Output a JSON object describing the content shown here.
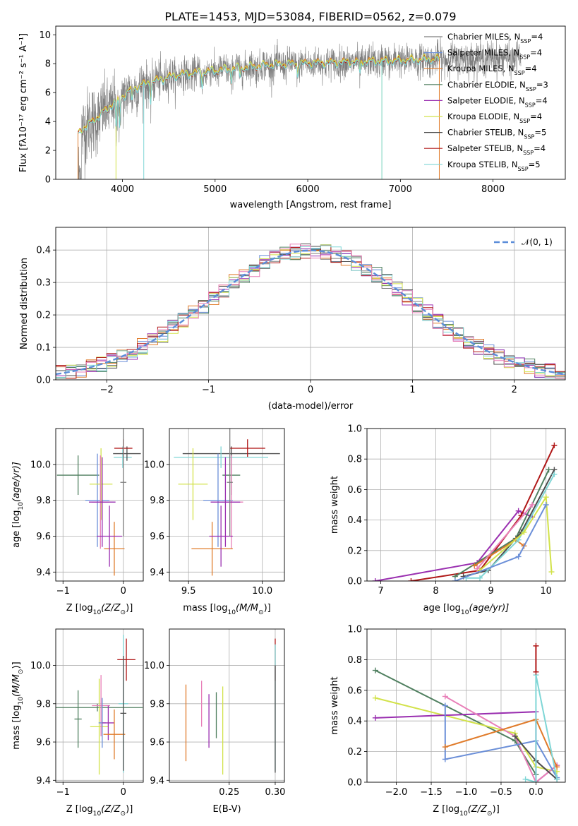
{
  "figure": {
    "title": "PLATE=1453, MJD=53084, FIBERID=0562, z=0.079"
  },
  "colors": {
    "Chabrier MILES": "#7f7f7f",
    "Salpeter MILES": "#6b8fd8",
    "Kroupa MILES": "#e07b2a",
    "Chabrier ELODIE": "#4f7f5f",
    "Salpeter ELODIE": "#9a2fb0",
    "Kroupa ELODIE": "#d2e24a",
    "Chabrier STELIB": "#4d4d4d",
    "Salpeter STELIB": "#b01818",
    "Kroupa STELIB": "#7fd6d6",
    "pink": "#e87fb8",
    "normal": "#5b8dd9"
  },
  "chart_data": [
    {
      "id": "spectrum",
      "type": "line",
      "title": "PLATE=1453, MJD=53084, FIBERID=0562, z=0.079",
      "xlabel": "wavelength [Angstrom, rest frame]",
      "ylabel": "Flux [fλ10⁻¹⁷ erg cm⁻² s⁻¹ A⁻¹]",
      "xlim": [
        3280,
        8780
      ],
      "ylim": [
        0,
        10.6
      ],
      "xticks": [
        4000,
        5000,
        6000,
        7000,
        8000
      ],
      "yticks": [
        0,
        2,
        4,
        6,
        8,
        10
      ],
      "legend_position": "right",
      "data_range": [
        3520,
        8300
      ],
      "model_range": [
        3520,
        7420
      ],
      "legend": [
        {
          "name": "Chabrier MILES",
          "label": "Chabrier MILES, N",
          "sub": "SSP",
          "suffix": "=4"
        },
        {
          "name": "Salpeter MILES",
          "label": "Salpeter MILES, N",
          "sub": "SSP",
          "suffix": "=4"
        },
        {
          "name": "Kroupa MILES",
          "label": "Kroupa MILES, N",
          "sub": "SSP",
          "suffix": "=4"
        },
        {
          "name": "Chabrier ELODIE",
          "label": "Chabrier ELODIE, N",
          "sub": "SSP",
          "suffix": "=3"
        },
        {
          "name": "Salpeter ELODIE",
          "label": "Salpeter ELODIE, N",
          "sub": "SSP",
          "suffix": "=4"
        },
        {
          "name": "Kroupa ELODIE",
          "label": "Kroupa ELODIE, N",
          "sub": "SSP",
          "suffix": "=4"
        },
        {
          "name": "Chabrier STELIB",
          "label": "Chabrier STELIB, N",
          "sub": "SSP",
          "suffix": "=5"
        },
        {
          "name": "Salpeter STELIB",
          "label": "Salpeter STELIB, N",
          "sub": "SSP",
          "suffix": "=4"
        },
        {
          "name": "Kroupa STELIB",
          "label": "Kroupa STELIB, N",
          "sub": "SSP",
          "suffix": "=5"
        }
      ],
      "continuum": [
        [
          3520,
          3.2
        ],
        [
          3700,
          4.1
        ],
        [
          3900,
          5.2
        ],
        [
          4100,
          6.2
        ],
        [
          4300,
          6.7
        ],
        [
          4600,
          7.2
        ],
        [
          5000,
          7.5
        ],
        [
          5300,
          7.7
        ],
        [
          5600,
          7.9
        ],
        [
          6000,
          8.0
        ],
        [
          6500,
          8.1
        ],
        [
          7000,
          8.2
        ],
        [
          7400,
          8.3
        ],
        [
          8000,
          8.4
        ],
        [
          8300,
          8.4
        ]
      ],
      "features": [
        [
          3933,
          2.0
        ],
        [
          3968,
          2.0
        ],
        [
          4102,
          0.8
        ],
        [
          4304,
          1.2
        ],
        [
          4861,
          0.9
        ],
        [
          5175,
          0.8
        ],
        [
          5270,
          0.5
        ],
        [
          5890,
          0.7
        ],
        [
          6563,
          0.9
        ]
      ]
    },
    {
      "id": "residuals",
      "type": "line",
      "xlabel": "(data-model)/error",
      "ylabel": "Normed distribution",
      "xlim": [
        -2.5,
        2.5
      ],
      "ylim": [
        0,
        0.47
      ],
      "xticks": [
        -2,
        -1,
        0,
        1,
        2
      ],
      "yticks": [
        0.0,
        0.1,
        0.2,
        0.3,
        0.4
      ],
      "grid": true,
      "legend": [
        {
          "name": "𝒩(0, 1)",
          "style": "dashed"
        }
      ],
      "legend_position": "top-right",
      "bin_width": 0.1
    },
    {
      "id": "age-vs-Z",
      "type": "scatter",
      "xlabel_main": "Z [log",
      "xlabel_sub": "10",
      "xlabel_rest": "(Z/Z",
      "xlabel_end": ")]",
      "ylabel_main": "age  [log",
      "ylabel_sub": "10",
      "ylabel_rest": "(age/yr)]",
      "xlim": [
        -1.12,
        0.33
      ],
      "ylim": [
        9.35,
        10.2
      ],
      "xticks": [
        -1,
        0
      ],
      "yticks": [
        9.4,
        9.6,
        9.8,
        10.0
      ],
      "grid": true,
      "points": [
        {
          "s": "Chabrier ELODIE",
          "x": -0.75,
          "y": 9.94,
          "xerr": 0.35,
          "yerr": 0.11
        },
        {
          "s": "Salpeter MILES",
          "x": -0.43,
          "y": 9.8,
          "xerr": 0.2,
          "yerr": 0.26
        },
        {
          "s": "Kroupa ELODIE",
          "x": -0.37,
          "y": 9.89,
          "xerr": 0.19,
          "yerr": 0.2
        },
        {
          "s": "pink",
          "x": -0.38,
          "y": 9.79,
          "xerr": 0.14,
          "yerr": 0.26
        },
        {
          "s": "Salpeter ELODIE",
          "x": -0.35,
          "y": 9.79,
          "xerr": 0.22,
          "yerr": 0.25
        },
        {
          "s": "Kroupa MILES",
          "x": -0.15,
          "y": 9.53,
          "xerr": 0.17,
          "yerr": 0.15
        },
        {
          "s": "Salpeter ELODIE",
          "x": -0.23,
          "y": 9.6,
          "xerr": 0.21,
          "yerr": 0.17
        },
        {
          "s": "Kroupa STELIB",
          "x": -0.01,
          "y": 10.04,
          "xerr": 0.15,
          "yerr": 0.06
        },
        {
          "s": "Chabrier STELIB",
          "x": 0.06,
          "y": 10.06,
          "xerr": 0.23,
          "yerr": 0.04
        },
        {
          "s": "Salpeter STELIB",
          "x": 0.0,
          "y": 10.09,
          "xerr": 0.15,
          "yerr": 0.05
        },
        {
          "s": "Chabrier MILES",
          "x": 0.0,
          "y": 9.9,
          "xerr": 0.05,
          "yerr": 0.3
        }
      ]
    },
    {
      "id": "age-vs-mass",
      "type": "scatter",
      "xlabel_main": "mass [log",
      "xlabel_sub": "10",
      "xlabel_rest": "(M/M",
      "xlabel_end": ")]",
      "xlim": [
        9.37,
        10.15
      ],
      "ylim": [
        9.35,
        10.2
      ],
      "xticks": [
        9.5,
        10.0
      ],
      "yticks": [
        9.4,
        9.6,
        9.8,
        10.0
      ],
      "grid": true,
      "points": [
        {
          "s": "Chabrier STELIB",
          "x": 9.79,
          "y": 10.06,
          "xerr": 0.33,
          "yerr": 0.04
        },
        {
          "s": "Salpeter STELIB",
          "x": 9.9,
          "y": 10.09,
          "xerr": 0.12,
          "yerr": 0.05
        },
        {
          "s": "Kroupa STELIB",
          "x": 9.72,
          "y": 10.04,
          "xerr": 0.32,
          "yerr": 0.06
        },
        {
          "s": "Chabrier ELODIE",
          "x": 9.79,
          "y": 9.94,
          "xerr": 0.06,
          "yerr": 0.11
        },
        {
          "s": "Kroupa ELODIE",
          "x": 9.53,
          "y": 9.89,
          "xerr": 0.1,
          "yerr": 0.2
        },
        {
          "s": "Salpeter MILES",
          "x": 9.7,
          "y": 9.8,
          "xerr": 0.1,
          "yerr": 0.26
        },
        {
          "s": "pink",
          "x": 9.79,
          "y": 9.79,
          "xerr": 0.08,
          "yerr": 0.26
        },
        {
          "s": "Salpeter ELODIE",
          "x": 9.75,
          "y": 9.79,
          "xerr": 0.1,
          "yerr": 0.25
        },
        {
          "s": "Kroupa MILES",
          "x": 9.66,
          "y": 9.53,
          "xerr": 0.14,
          "yerr": 0.15
        },
        {
          "s": "Salpeter ELODIE",
          "x": 9.72,
          "y": 9.6,
          "xerr": 0.08,
          "yerr": 0.17
        },
        {
          "s": "Chabrier MILES",
          "x": 9.78,
          "y": 9.9,
          "xerr": 0.02,
          "yerr": 0.3
        }
      ]
    },
    {
      "id": "weight-vs-age",
      "type": "line",
      "xlabel_main": "age  [log",
      "xlabel_sub": "10",
      "xlabel_rest": "(age/yr)]",
      "ylabel": "mass weight",
      "xlim": [
        6.75,
        10.35
      ],
      "ylim": [
        0,
        1.0
      ],
      "xticks": [
        7,
        8,
        9,
        10
      ],
      "yticks": [
        0.0,
        0.2,
        0.4,
        0.6,
        0.8,
        1.0
      ],
      "grid": true,
      "series": [
        {
          "s": "Salpeter ELODIE",
          "pts": [
            [
              6.9,
              0.0
            ],
            [
              8.75,
              0.12
            ],
            [
              9.5,
              0.46
            ],
            [
              9.75,
              0.42
            ]
          ]
        },
        {
          "s": "Salpeter STELIB",
          "pts": [
            [
              7.55,
              0.0
            ],
            [
              8.8,
              0.07
            ],
            [
              9.55,
              0.43
            ],
            [
              10.15,
              0.89
            ]
          ]
        },
        {
          "s": "Chabrier ELODIE",
          "pts": [
            [
              8.35,
              0.03
            ],
            [
              9.45,
              0.28
            ],
            [
              10.05,
              0.73
            ]
          ]
        },
        {
          "s": "Chabrier STELIB",
          "pts": [
            [
              8.5,
              0.03
            ],
            [
              8.95,
              0.07
            ],
            [
              9.55,
              0.32
            ],
            [
              10.15,
              0.73
            ]
          ]
        },
        {
          "s": "Kroupa MILES",
          "pts": [
            [
              8.7,
              0.1
            ],
            [
              9.45,
              0.27
            ],
            [
              9.6,
              0.23
            ]
          ]
        },
        {
          "s": "pink",
          "pts": [
            [
              8.75,
              0.08
            ],
            [
              9.75,
              0.5
            ]
          ]
        },
        {
          "s": "Kroupa STELIB",
          "pts": [
            [
              8.55,
              0.02
            ],
            [
              8.8,
              0.02
            ],
            [
              9.5,
              0.27
            ],
            [
              10.15,
              0.7
            ]
          ]
        },
        {
          "s": "Kroupa ELODIE",
          "pts": [
            [
              8.8,
              0.07
            ],
            [
              9.6,
              0.32
            ],
            [
              10.0,
              0.55
            ],
            [
              10.1,
              0.06
            ]
          ]
        },
        {
          "s": "Salpeter MILES",
          "pts": [
            [
              8.35,
              0.0
            ],
            [
              9.5,
              0.16
            ],
            [
              10.0,
              0.5
            ]
          ]
        }
      ]
    },
    {
      "id": "mass-vs-Z",
      "type": "scatter",
      "xlabel_main": "Z [log",
      "xlabel_sub": "10",
      "xlabel_rest": "(Z/Z",
      "xlabel_end": ")]",
      "ylabel_main": "mass [log",
      "ylabel_sub": "10",
      "ylabel_rest": "(M/M",
      "ylabel_end": ")]",
      "xlim": [
        -1.12,
        0.33
      ],
      "ylim": [
        9.39,
        10.19
      ],
      "xticks": [
        -1,
        0
      ],
      "yticks": [
        9.4,
        9.6,
        9.8,
        10.0
      ],
      "grid": true,
      "points": [
        {
          "s": "Chabrier ELODIE",
          "x": -0.75,
          "y": 9.72,
          "xerr": 0.06,
          "yerr": 0.15
        },
        {
          "s": "Chabrier ELODIE",
          "x": -0.43,
          "y": 9.78,
          "xerr": 0.75,
          "yerr": 0.02
        },
        {
          "s": "Kroupa ELODIE",
          "x": -0.4,
          "y": 9.68,
          "xerr": 0.15,
          "yerr": 0.25
        },
        {
          "s": "pink",
          "x": -0.37,
          "y": 9.79,
          "xerr": 0.15,
          "yerr": 0.16
        },
        {
          "s": "Salpeter MILES",
          "x": -0.35,
          "y": 9.7,
          "xerr": 0.06,
          "yerr": 0.13
        },
        {
          "s": "Salpeter ELODIE",
          "x": -0.25,
          "y": 9.7,
          "xerr": 0.1,
          "yerr": 0.09
        },
        {
          "s": "Kroupa MILES",
          "x": -0.15,
          "y": 9.64,
          "xerr": 0.18,
          "yerr": 0.13
        },
        {
          "s": "Salpeter STELIB",
          "x": 0.05,
          "y": 10.03,
          "xerr": 0.15,
          "yerr": 0.11
        },
        {
          "s": "Kroupa STELIB",
          "x": 0.0,
          "y": 9.8,
          "xerr": 0.08,
          "yerr": 0.36
        },
        {
          "s": "Chabrier STELIB",
          "x": 0.0,
          "y": 9.75,
          "xerr": 0.05,
          "yerr": 0.3
        }
      ]
    },
    {
      "id": "mass-vs-ebv",
      "type": "scatter",
      "xlabel": "E(B-V)",
      "xlim": [
        0.185,
        0.31
      ],
      "ylim": [
        9.39,
        10.19
      ],
      "xticks": [
        0.25,
        0.3
      ],
      "xtick_labels": [
        "0.25",
        "0.30"
      ],
      "yticks": [
        9.4,
        9.6,
        9.8,
        10.0
      ],
      "grid": true,
      "points": [
        {
          "s": "Kroupa MILES",
          "x": 0.203,
          "y": 9.7,
          "yerr": 0.2
        },
        {
          "s": "pink",
          "x": 0.22,
          "y": 9.8,
          "yerr": 0.12
        },
        {
          "s": "Salpeter ELODIE",
          "x": 0.228,
          "y": 9.71,
          "yerr": 0.14
        },
        {
          "s": "Chabrier ELODIE",
          "x": 0.236,
          "y": 9.74,
          "yerr": 0.12
        },
        {
          "s": "Kroupa ELODIE",
          "x": 0.243,
          "y": 9.66,
          "yerr": 0.23
        },
        {
          "s": "Salpeter STELIB",
          "x": 0.3,
          "y": 10.03,
          "yerr": 0.11
        },
        {
          "s": "Kroupa STELIB",
          "x": 0.3,
          "y": 9.78,
          "yerr": 0.33
        },
        {
          "s": "Chabrier STELIB",
          "x": 0.3,
          "y": 9.72,
          "yerr": 0.28
        }
      ]
    },
    {
      "id": "weight-vs-Z",
      "type": "line",
      "xlabel_main": "Z [log",
      "xlabel_sub": "10",
      "xlabel_rest": "(Z/Z",
      "xlabel_end": ")]",
      "ylabel": "mass weight",
      "xlim": [
        -2.42,
        0.42
      ],
      "ylim": [
        0,
        1.0
      ],
      "xticks": [
        -2.0,
        -1.5,
        -1.0,
        -0.5,
        0.0
      ],
      "yticks": [
        0.0,
        0.2,
        0.4,
        0.6,
        0.8,
        1.0
      ],
      "grid": true,
      "series": [
        {
          "s": "Chabrier ELODIE",
          "pts": [
            [
              -2.3,
              0.73
            ],
            [
              -0.3,
              0.27
            ],
            [
              0.0,
              0.05
            ]
          ]
        },
        {
          "s": "Kroupa ELODIE",
          "pts": [
            [
              -2.3,
              0.55
            ],
            [
              -0.3,
              0.32
            ],
            [
              0.0,
              0.1
            ],
            [
              0.3,
              0.07
            ]
          ]
        },
        {
          "s": "Salpeter ELODIE",
          "pts": [
            [
              -2.3,
              0.42
            ],
            [
              0.0,
              0.46
            ],
            [
              0.0,
              0.0
            ],
            [
              0.3,
              0.11
            ]
          ]
        },
        {
          "s": "pink",
          "pts": [
            [
              -1.3,
              0.56
            ],
            [
              -0.3,
              0.3
            ],
            [
              0.0,
              0.0
            ],
            [
              0.3,
              0.11
            ]
          ]
        },
        {
          "s": "Salpeter MILES",
          "pts": [
            [
              -1.3,
              0.5
            ],
            [
              -1.3,
              0.15
            ],
            [
              0.0,
              0.27
            ],
            [
              0.3,
              0.03
            ]
          ]
        },
        {
          "s": "Kroupa MILES",
          "pts": [
            [
              -1.3,
              0.23
            ],
            [
              0.0,
              0.41
            ],
            [
              0.3,
              0.1
            ]
          ]
        },
        {
          "s": "Chabrier STELIB",
          "pts": [
            [
              -0.3,
              0.3
            ],
            [
              0.0,
              0.14
            ],
            [
              0.3,
              0.02
            ]
          ]
        },
        {
          "s": "Kroupa STELIB",
          "pts": [
            [
              -0.15,
              0.02
            ],
            [
              0.0,
              0.0
            ],
            [
              0.0,
              0.7
            ],
            [
              0.3,
              0.02
            ]
          ]
        },
        {
          "s": "Salpeter STELIB",
          "pts": [
            [
              0.0,
              0.89
            ],
            [
              0.0,
              0.72
            ]
          ]
        }
      ]
    }
  ]
}
